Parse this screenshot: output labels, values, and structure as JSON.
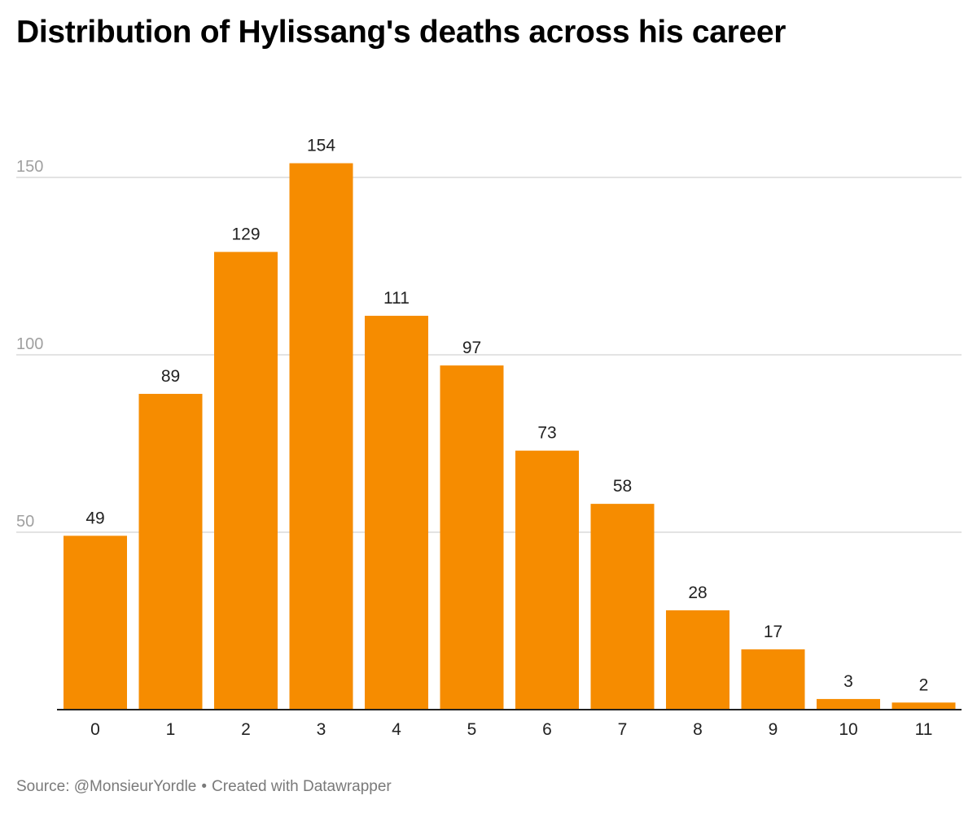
{
  "chart_data": {
    "type": "bar",
    "title": "Distribution of Hylissang's deaths across his career",
    "categories": [
      "0",
      "1",
      "2",
      "3",
      "4",
      "5",
      "6",
      "7",
      "8",
      "9",
      "10",
      "11"
    ],
    "values": [
      49,
      89,
      129,
      154,
      111,
      97,
      73,
      58,
      28,
      17,
      3,
      2
    ],
    "xlabel": "",
    "ylabel": "",
    "ylim": [
      0,
      160
    ],
    "yticks": [
      50,
      100,
      150
    ],
    "grid": true,
    "bar_color": "#f68c00",
    "grid_color": "#e3e3e3",
    "axis_label_color": "#a0a0a0"
  },
  "footer": {
    "source": "Source: @MonsieurYordle",
    "separator": "•",
    "credit": "Created with Datawrapper"
  }
}
